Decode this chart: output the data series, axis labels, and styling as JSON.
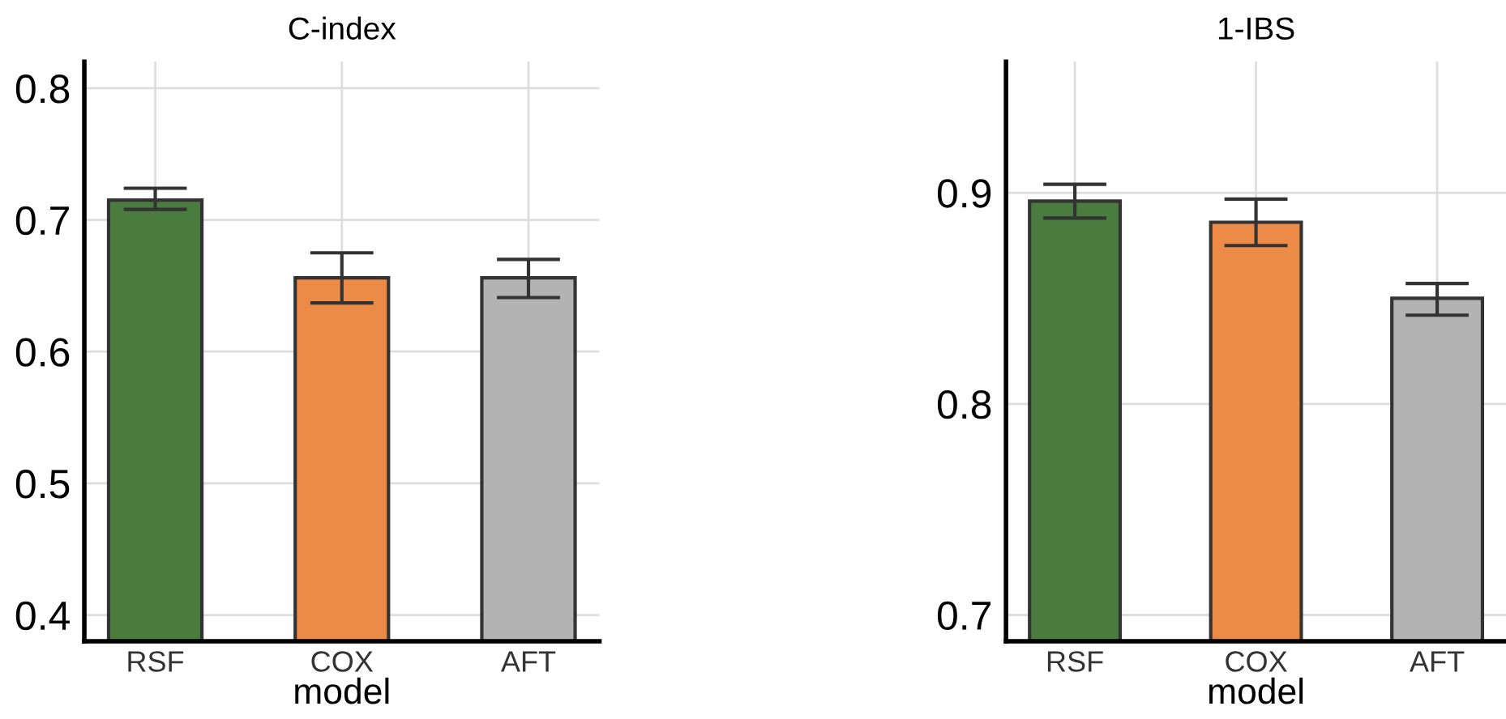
{
  "chart_data": [
    {
      "type": "bar",
      "title": "C-index",
      "xlabel": "model",
      "categories": [
        "RSF",
        "COX",
        "AFT"
      ],
      "values": [
        0.715,
        0.656,
        0.656
      ],
      "colors": [
        "#4a7c3f",
        "#ec8a48",
        "#b3b3b3"
      ],
      "errors": [
        [
          0.708,
          0.724
        ],
        [
          0.637,
          0.675
        ],
        [
          0.641,
          0.67
        ]
      ],
      "ylim": [
        0.38,
        0.82
      ],
      "yticks": [
        0.4,
        0.5,
        0.6,
        0.7,
        0.8
      ],
      "grid": true
    },
    {
      "type": "bar",
      "title": "1-IBS",
      "xlabel": "model",
      "categories": [
        "RSF",
        "COX",
        "AFT"
      ],
      "values": [
        0.896,
        0.886,
        0.85
      ],
      "colors": [
        "#4a7c3f",
        "#ec8a48",
        "#b3b3b3"
      ],
      "errors": [
        [
          0.888,
          0.904
        ],
        [
          0.875,
          0.897
        ],
        [
          0.842,
          0.857
        ]
      ],
      "ylim": [
        0.6875,
        0.962
      ],
      "yticks": [
        0.7,
        0.8,
        0.9
      ],
      "grid": true
    }
  ]
}
